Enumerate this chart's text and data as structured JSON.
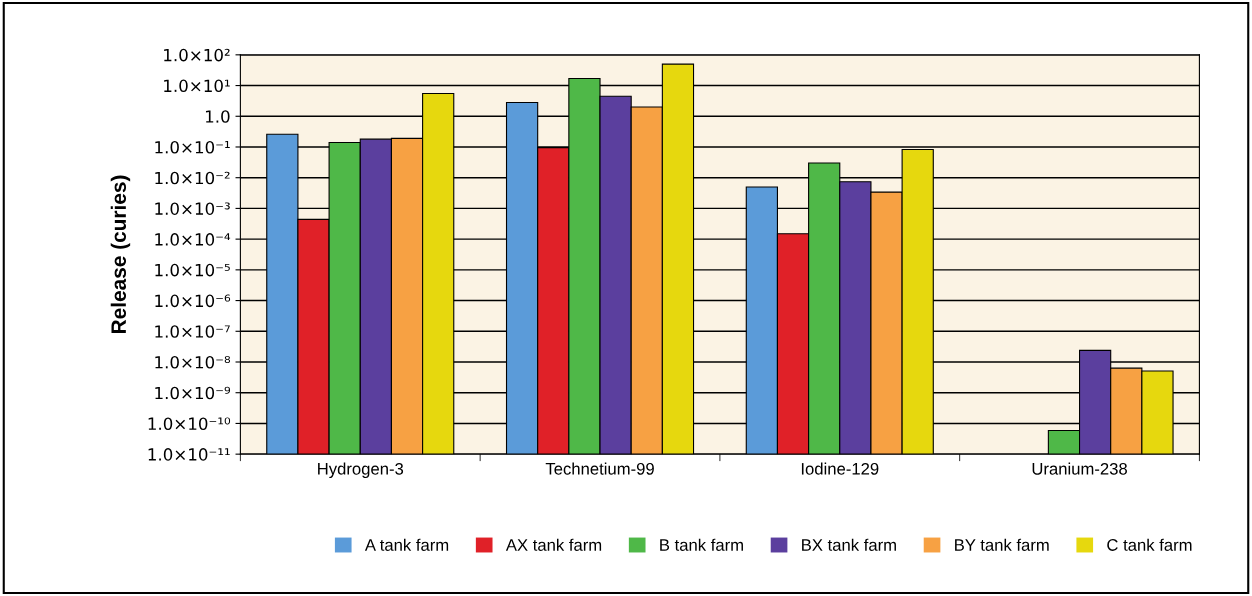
{
  "chart_data": {
    "type": "bar",
    "ylabel": "Release (curies)",
    "log": "y",
    "grid": "y",
    "legend": "bottom",
    "categories": [
      "Hydrogen-3",
      "Technetium-99",
      "Iodine-129",
      "Uranium-238"
    ],
    "ylim": [
      1e-11,
      100
    ],
    "yticks": [
      {
        "value": 100,
        "label": "1.0×10²"
      },
      {
        "value": 10,
        "label": "1.0×10¹"
      },
      {
        "value": 1,
        "label": "1.0"
      },
      {
        "value": 0.1,
        "label": "1.0×10⁻¹"
      },
      {
        "value": 0.01,
        "label": "1.0×10⁻²"
      },
      {
        "value": 0.001,
        "label": "1.0×10⁻³"
      },
      {
        "value": 0.0001,
        "label": "1.0×10⁻⁴"
      },
      {
        "value": 1e-05,
        "label": "1.0×10⁻⁵"
      },
      {
        "value": 1e-06,
        "label": "1.0×10⁻⁶"
      },
      {
        "value": 1e-07,
        "label": "1.0×10⁻⁷"
      },
      {
        "value": 1e-08,
        "label": "1.0×10⁻⁸"
      },
      {
        "value": 1e-09,
        "label": "1.0×10⁻⁹"
      },
      {
        "value": 1e-10,
        "label": "1.0×10⁻¹⁰"
      },
      {
        "value": 1e-11,
        "label": "1.0×10⁻¹¹"
      }
    ],
    "series": [
      {
        "name": "A tank farm",
        "color": "#5b9bd9",
        "values": [
          0.26,
          2.8,
          0.005,
          null
        ]
      },
      {
        "name": "AX tank farm",
        "color": "#e02128",
        "values": [
          0.00044,
          0.095,
          0.00015,
          null
        ]
      },
      {
        "name": "B tank farm",
        "color": "#4fb848",
        "values": [
          0.14,
          17,
          0.03,
          5.9e-11
        ]
      },
      {
        "name": "BX tank farm",
        "color": "#5b3f9e",
        "values": [
          0.18,
          4.5,
          0.0074,
          2.4e-08
        ]
      },
      {
        "name": "BY tank farm",
        "color": "#f7a143",
        "values": [
          0.19,
          2.0,
          0.0034,
          6.3e-09
        ]
      },
      {
        "name": "C tank farm",
        "color": "#e6d80e",
        "values": [
          5.5,
          50,
          0.083,
          5.1e-09
        ]
      }
    ]
  }
}
